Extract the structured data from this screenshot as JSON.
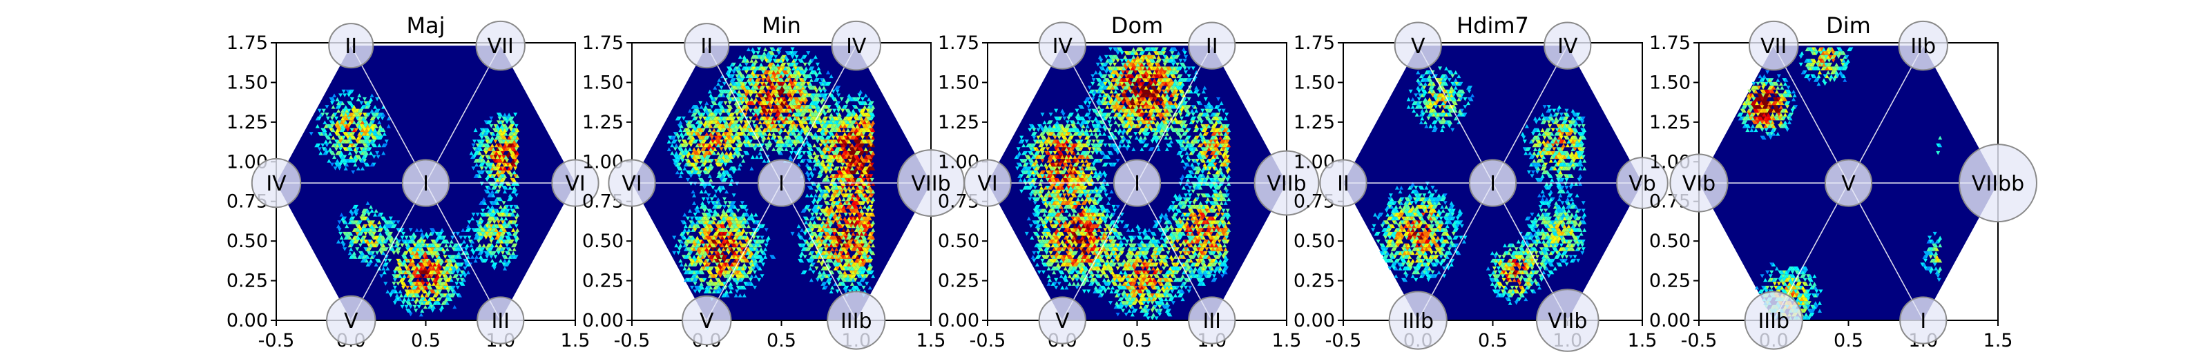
{
  "figure": {
    "background": "#ffffff"
  },
  "chart_data": [
    {
      "type": "heatmap",
      "title": "Maj",
      "xlabel": "",
      "ylabel": "",
      "xlim": [
        -0.5,
        1.5
      ],
      "ylim": [
        0,
        1.75
      ],
      "x_ticks": [
        "-0.5",
        "0.0",
        "0.5",
        "1.0",
        "1.5"
      ],
      "y_ticks": [
        "0.00",
        "0.25",
        "0.50",
        "0.75",
        "1.00",
        "1.25",
        "1.50",
        "1.75"
      ],
      "hexagon_center": [
        0.5,
        0.866
      ],
      "colormap": "jet",
      "vertex_nodes": [
        {
          "label": "I",
          "x": 0.5,
          "y": 0.866,
          "weight": 0.3
        },
        {
          "label": "II",
          "x": 0.0,
          "y": 1.732,
          "weight": 0.25
        },
        {
          "label": "VII",
          "x": 1.0,
          "y": 1.732,
          "weight": 0.35
        },
        {
          "label": "IV",
          "x": -0.5,
          "y": 0.866,
          "weight": 0.35
        },
        {
          "label": "VI",
          "x": 1.5,
          "y": 0.866,
          "weight": 0.3
        },
        {
          "label": "V",
          "x": 0.0,
          "y": 0.0,
          "weight": 0.35
        },
        {
          "label": "III",
          "x": 1.0,
          "y": 0.0,
          "weight": 0.3
        }
      ],
      "density_clusters": [
        {
          "x": 0.0,
          "y": 1.2,
          "spread": 0.22,
          "peak": 0.55
        },
        {
          "x": 1.05,
          "y": 1.05,
          "spread": 0.2,
          "peak": 0.75
        },
        {
          "x": 0.5,
          "y": 0.3,
          "spread": 0.22,
          "peak": 0.7
        },
        {
          "x": 0.1,
          "y": 0.55,
          "spread": 0.18,
          "peak": 0.45
        },
        {
          "x": 1.0,
          "y": 0.55,
          "spread": 0.2,
          "peak": 0.45
        }
      ]
    },
    {
      "type": "heatmap",
      "title": "Min",
      "xlabel": "",
      "ylabel": "",
      "xlim": [
        -0.5,
        1.5
      ],
      "ylim": [
        0,
        1.75
      ],
      "x_ticks": [
        "-0.5",
        "0.0",
        "0.5",
        "1.0",
        "1.5"
      ],
      "y_ticks": [
        "0.00",
        "0.25",
        "0.50",
        "0.75",
        "1.00",
        "1.25",
        "1.50",
        "1.75"
      ],
      "hexagon_center": [
        0.5,
        0.866
      ],
      "colormap": "jet",
      "vertex_nodes": [
        {
          "label": "I",
          "x": 0.5,
          "y": 0.866,
          "weight": 0.3
        },
        {
          "label": "II",
          "x": 0.0,
          "y": 1.732,
          "weight": 0.25
        },
        {
          "label": "IV",
          "x": 1.0,
          "y": 1.732,
          "weight": 0.35
        },
        {
          "label": "VI",
          "x": -0.5,
          "y": 0.866,
          "weight": 0.3
        },
        {
          "label": "VIIb",
          "x": 1.5,
          "y": 0.866,
          "weight": 0.75
        },
        {
          "label": "V",
          "x": 0.0,
          "y": 0.0,
          "weight": 0.35
        },
        {
          "label": "IIIb",
          "x": 1.0,
          "y": 0.0,
          "weight": 0.55
        }
      ],
      "density_clusters": [
        {
          "x": 0.45,
          "y": 1.4,
          "spread": 0.3,
          "peak": 0.7
        },
        {
          "x": 1.05,
          "y": 1.05,
          "spread": 0.28,
          "peak": 0.85
        },
        {
          "x": 0.1,
          "y": 0.45,
          "spread": 0.25,
          "peak": 0.75
        },
        {
          "x": 0.95,
          "y": 0.5,
          "spread": 0.28,
          "peak": 0.7
        },
        {
          "x": 0.0,
          "y": 1.1,
          "spread": 0.22,
          "peak": 0.55
        }
      ]
    },
    {
      "type": "heatmap",
      "title": "Dom",
      "xlabel": "",
      "ylabel": "",
      "xlim": [
        -0.5,
        1.5
      ],
      "ylim": [
        0,
        1.75
      ],
      "x_ticks": [
        "-0.5",
        "0.0",
        "0.5",
        "1.0",
        "1.5"
      ],
      "y_ticks": [
        "0.00",
        "0.25",
        "0.50",
        "0.75",
        "1.00",
        "1.25",
        "1.50",
        "1.75"
      ],
      "hexagon_center": [
        0.5,
        0.866
      ],
      "colormap": "jet",
      "vertex_nodes": [
        {
          "label": "I",
          "x": 0.5,
          "y": 0.866,
          "weight": 0.3
        },
        {
          "label": "IV",
          "x": 0.0,
          "y": 1.732,
          "weight": 0.3
        },
        {
          "label": "II",
          "x": 1.0,
          "y": 1.732,
          "weight": 0.3
        },
        {
          "label": "VI",
          "x": -0.5,
          "y": 0.866,
          "weight": 0.3
        },
        {
          "label": "VIIb",
          "x": 1.5,
          "y": 0.866,
          "weight": 0.7
        },
        {
          "label": "V",
          "x": 0.0,
          "y": 0.0,
          "weight": 0.3
        },
        {
          "label": "III",
          "x": 1.0,
          "y": 0.0,
          "weight": 0.3
        }
      ],
      "density_clusters": [
        {
          "x": 0.55,
          "y": 1.45,
          "spread": 0.28,
          "peak": 0.8
        },
        {
          "x": 0.0,
          "y": 1.0,
          "spread": 0.25,
          "peak": 0.7
        },
        {
          "x": 0.1,
          "y": 0.5,
          "spread": 0.25,
          "peak": 0.75
        },
        {
          "x": 0.95,
          "y": 0.55,
          "spread": 0.25,
          "peak": 0.65
        },
        {
          "x": 0.55,
          "y": 0.25,
          "spread": 0.22,
          "peak": 0.6
        },
        {
          "x": 1.05,
          "y": 1.1,
          "spread": 0.22,
          "peak": 0.55
        }
      ]
    },
    {
      "type": "heatmap",
      "title": "Hdim7",
      "xlabel": "",
      "ylabel": "",
      "xlim": [
        -0.5,
        1.5
      ],
      "ylim": [
        0,
        1.75
      ],
      "x_ticks": [
        "-0.5",
        "0.0",
        "0.5",
        "1.0",
        "1.5"
      ],
      "y_ticks": [
        "0.00",
        "0.25",
        "0.50",
        "0.75",
        "1.00",
        "1.25",
        "1.50",
        "1.75"
      ],
      "hexagon_center": [
        0.5,
        0.866
      ],
      "colormap": "jet",
      "vertex_nodes": [
        {
          "label": "I",
          "x": 0.5,
          "y": 0.866,
          "weight": 0.3
        },
        {
          "label": "V",
          "x": 0.0,
          "y": 1.732,
          "weight": 0.3
        },
        {
          "label": "IV",
          "x": 1.0,
          "y": 1.732,
          "weight": 0.3
        },
        {
          "label": "II",
          "x": -0.5,
          "y": 0.866,
          "weight": 0.3
        },
        {
          "label": "Vb",
          "x": 1.5,
          "y": 0.866,
          "weight": 0.4
        },
        {
          "label": "IIIb",
          "x": 0.0,
          "y": 0.0,
          "weight": 0.55
        },
        {
          "label": "VIIb",
          "x": 1.0,
          "y": 0.0,
          "weight": 0.65
        }
      ],
      "density_clusters": [
        {
          "x": 0.0,
          "y": 0.55,
          "spread": 0.25,
          "peak": 0.65
        },
        {
          "x": 0.65,
          "y": 0.3,
          "spread": 0.15,
          "peak": 0.7
        },
        {
          "x": 0.95,
          "y": 1.1,
          "spread": 0.22,
          "peak": 0.55
        },
        {
          "x": 0.15,
          "y": 1.4,
          "spread": 0.2,
          "peak": 0.45
        },
        {
          "x": 0.95,
          "y": 0.55,
          "spread": 0.22,
          "peak": 0.4
        }
      ]
    },
    {
      "type": "heatmap",
      "title": "Dim",
      "xlabel": "",
      "ylabel": "",
      "xlim": [
        -0.5,
        1.5
      ],
      "ylim": [
        0,
        1.75
      ],
      "x_ticks": [
        "-0.5",
        "0.0",
        "0.5",
        "1.0",
        "1.5"
      ],
      "y_ticks": [
        "0.00",
        "0.25",
        "0.50",
        "0.75",
        "1.00",
        "1.25",
        "1.50",
        "1.75"
      ],
      "hexagon_center": [
        0.5,
        0.866
      ],
      "colormap": "jet",
      "vertex_nodes": [
        {
          "label": "V",
          "x": 0.5,
          "y": 0.866,
          "weight": 0.3
        },
        {
          "label": "VII",
          "x": 0.0,
          "y": 1.732,
          "weight": 0.35
        },
        {
          "label": "IIb",
          "x": 1.0,
          "y": 1.732,
          "weight": 0.35
        },
        {
          "label": "VIb",
          "x": -0.5,
          "y": 0.866,
          "weight": 0.55
        },
        {
          "label": "VIIbb",
          "x": 1.5,
          "y": 0.866,
          "weight": 1.0
        },
        {
          "label": "IIIb",
          "x": 0.0,
          "y": 0.0,
          "weight": 0.55
        },
        {
          "label": "I",
          "x": 1.0,
          "y": 0.0,
          "weight": 0.3
        }
      ],
      "density_clusters": [
        {
          "x": -0.05,
          "y": 1.35,
          "spread": 0.15,
          "peak": 1.0
        },
        {
          "x": 0.35,
          "y": 1.65,
          "spread": 0.15,
          "peak": 0.55
        },
        {
          "x": 1.25,
          "y": 1.1,
          "spread": 0.15,
          "peak": 0.55
        },
        {
          "x": 0.1,
          "y": 0.15,
          "spread": 0.2,
          "peak": 0.5
        },
        {
          "x": 1.15,
          "y": 0.4,
          "spread": 0.15,
          "peak": 0.45
        }
      ]
    }
  ]
}
